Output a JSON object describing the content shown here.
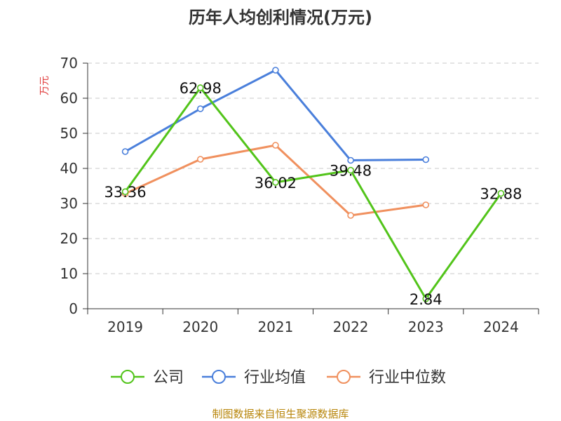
{
  "chart_data": {
    "type": "line",
    "title": "历年人均创利情况(万元)",
    "ylabel": "万元",
    "xlabel": "",
    "categories": [
      "2019",
      "2020",
      "2021",
      "2022",
      "2023",
      "2024"
    ],
    "ylim": [
      0,
      70
    ],
    "yticks": [
      0,
      10,
      20,
      30,
      40,
      50,
      60,
      70
    ],
    "grid": true,
    "legend_position": "bottom",
    "series": [
      {
        "name": "公司",
        "color": "#52c41a",
        "values": [
          33.36,
          62.98,
          36.02,
          39.48,
          2.84,
          32.88
        ],
        "labels": [
          "33.36",
          "62.98",
          "36.02",
          "39.48",
          "2.84",
          "32.88"
        ]
      },
      {
        "name": "行业均值",
        "color": "#4a7fdb",
        "values": [
          44.8,
          57.0,
          68.0,
          42.3,
          42.5,
          null
        ]
      },
      {
        "name": "行业中位数",
        "color": "#f0905e",
        "values": [
          32.8,
          42.6,
          46.6,
          26.6,
          29.6,
          null
        ]
      }
    ],
    "source": "制图数据来自恒生聚源数据库"
  }
}
